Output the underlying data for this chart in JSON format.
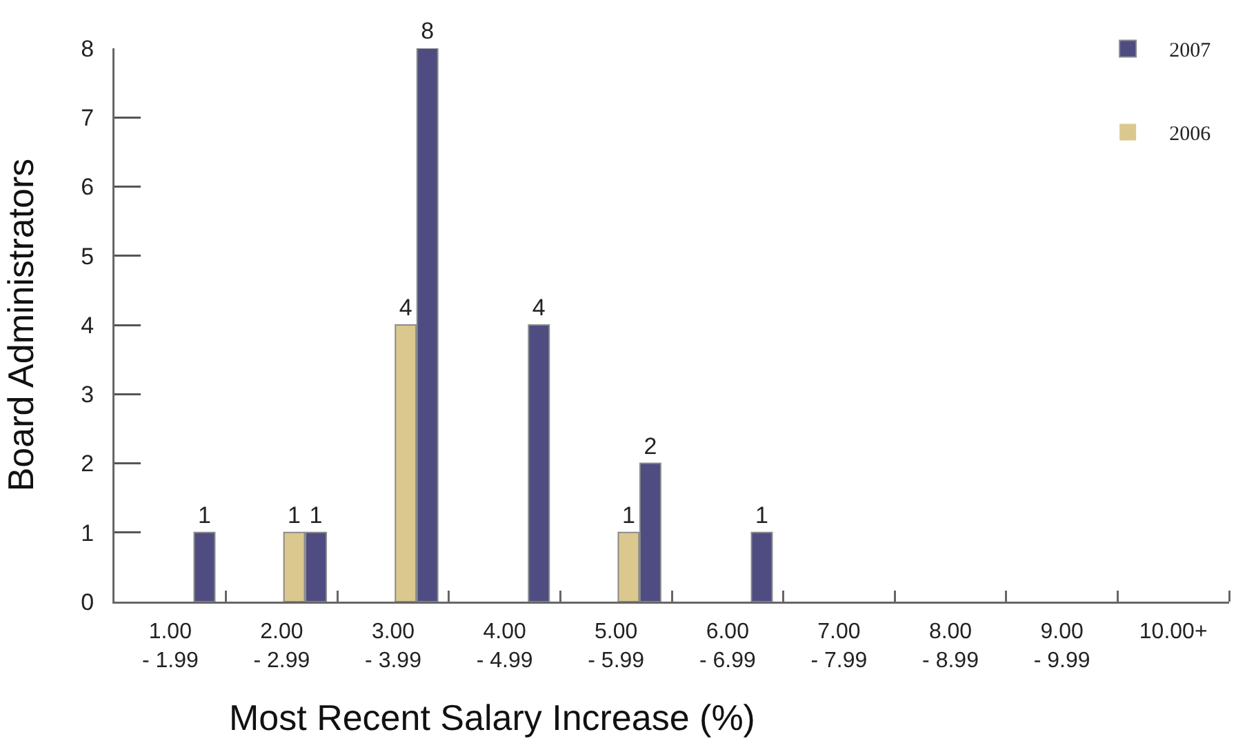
{
  "chart_data": {
    "type": "bar",
    "xlabel": "Most Recent Salary Increase (%)",
    "ylabel": "Board Administrators",
    "categories": [
      "1.00\n- 1.99",
      "2.00\n- 2.99",
      "3.00\n- 3.99",
      "4.00\n- 4.99",
      "5.00\n- 5.99",
      "6.00\n- 6.99",
      "7.00\n- 7.99",
      "8.00\n- 8.99",
      "9.00\n- 9.99",
      "10.00+"
    ],
    "series": [
      {
        "name": "2006",
        "color": "#dbc88f",
        "values": [
          0,
          1,
          4,
          0,
          1,
          0,
          0,
          0,
          0,
          0
        ],
        "value_labels": [
          null,
          "1",
          "4",
          null,
          "1",
          null,
          null,
          null,
          null,
          null
        ]
      },
      {
        "name": "2007",
        "color": "#4f4c82",
        "values": [
          1,
          1,
          8,
          4,
          2,
          1,
          0,
          0,
          0,
          0
        ],
        "value_labels": [
          "1",
          "1",
          "8",
          "4",
          "2",
          "1",
          null,
          null,
          null,
          null
        ]
      }
    ],
    "ylim": [
      0,
      8
    ],
    "yticks": [
      0,
      1,
      2,
      3,
      4,
      5,
      6,
      7,
      8
    ],
    "legend": "top right"
  }
}
